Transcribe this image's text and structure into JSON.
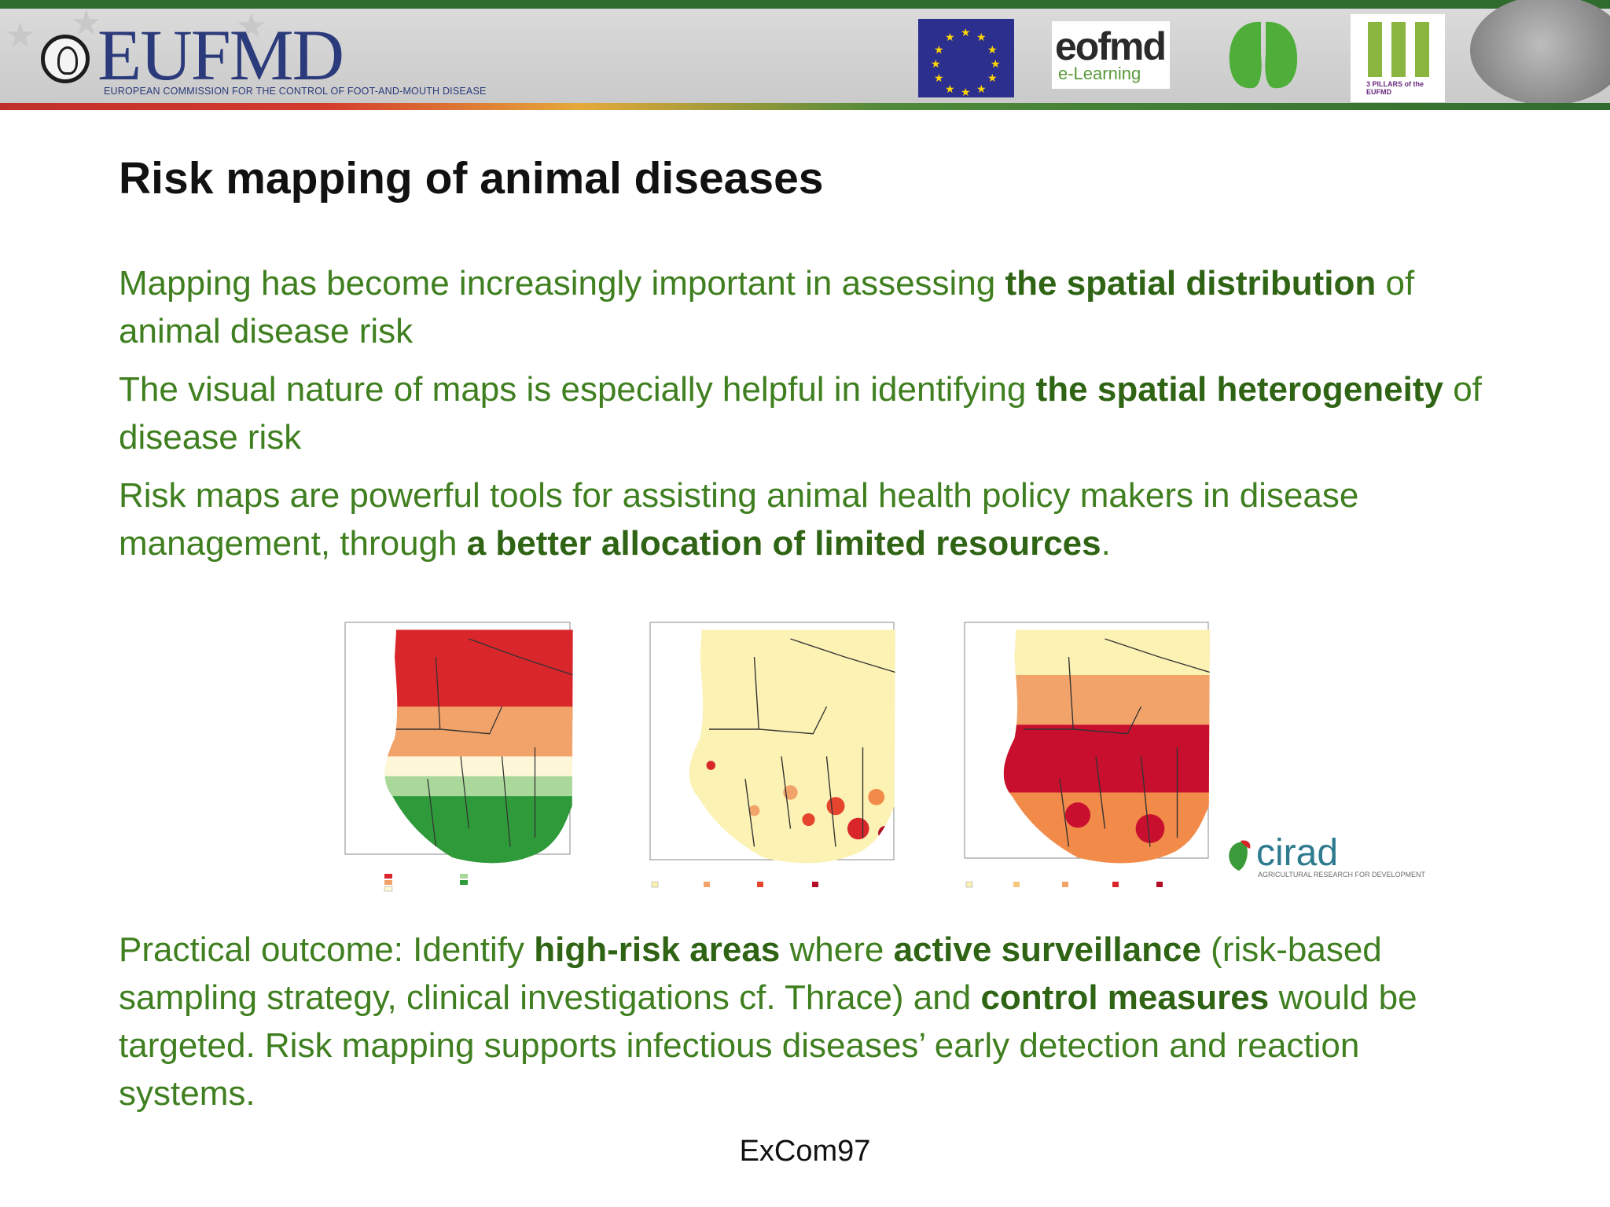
{
  "header": {
    "logo_text": "EUFMD",
    "logo_subtitle": "EUROPEAN COMMISSION FOR THE CONTROL OF FOOT-AND-MOUTH DISEASE",
    "eofmd_text": "eofmd",
    "eofmd_subtitle": "e-Learning",
    "pillars_caption": "3 PILLARS of the EUFMD"
  },
  "slide": {
    "title": "Risk mapping of animal diseases",
    "bullets": [
      [
        {
          "text": "Mapping has become increasingly important in assessing ",
          "bold": false
        },
        {
          "text": "the spatial distribution",
          "bold": true
        },
        {
          "text": " of animal disease risk",
          "bold": false
        }
      ],
      [
        {
          "text": "The visual nature of maps is especially helpful in identifying ",
          "bold": false
        },
        {
          "text": "the spatial heterogeneity",
          "bold": true
        },
        {
          "text": " of disease risk",
          "bold": false
        }
      ],
      [
        {
          "text": "Risk maps are powerful tools for assisting animal health policy makers in disease management, through ",
          "bold": false
        },
        {
          "text": "a better allocation of limited resources",
          "bold": true
        },
        {
          "text": ".",
          "bold": false
        }
      ],
      [
        {
          "text": "Practical outcome: Identify ",
          "bold": false
        },
        {
          "text": "high-risk areas",
          "bold": true
        },
        {
          "text": " where ",
          "bold": false
        },
        {
          "text": "active surveillance",
          "bold": true
        },
        {
          "text": " (risk-based sampling strategy, clinical investigations cf. Thrace) and ",
          "bold": false
        },
        {
          "text": "control measures",
          "bold": true
        },
        {
          "text": " would be targeted. Risk mapping supports infectious diseases’ early detection and reaction systems.",
          "bold": false
        }
      ]
    ],
    "footer": "ExCom97"
  },
  "figure": {
    "maps": [
      "climatic-zones-map",
      "cattle-density-map",
      "risk-map"
    ],
    "logo_text": "cirad",
    "logo_tagline": "AGRICULTURAL RESEARCH FOR DEVELOPMENT"
  },
  "colors": {
    "bullet_text": "#3f7f1f",
    "bullet_bold": "#2f6414",
    "title": "#111111",
    "map_red": "#d8262a",
    "map_orange": "#f2a36a",
    "map_cream": "#fbf2b4",
    "map_green": "#2f9a3a",
    "map_darkred": "#b30e25"
  }
}
